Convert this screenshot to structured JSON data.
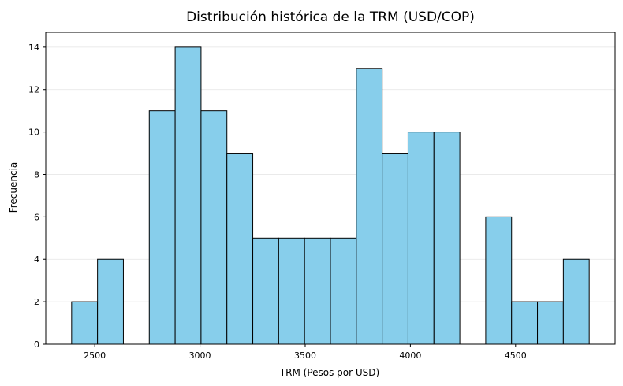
{
  "chart_data": {
    "type": "bar",
    "title": "Distribución histórica de la TRM (USD/COP)",
    "xlabel": "TRM (Pesos por USD)",
    "ylabel": "Frecuencia",
    "bins": [
      {
        "start": 2390,
        "end": 2513,
        "count": 2
      },
      {
        "start": 2513,
        "end": 2636,
        "count": 4
      },
      {
        "start": 2636,
        "end": 2759,
        "count": 0
      },
      {
        "start": 2759,
        "end": 2882,
        "count": 11
      },
      {
        "start": 2882,
        "end": 3005,
        "count": 14
      },
      {
        "start": 3005,
        "end": 3128,
        "count": 11
      },
      {
        "start": 3128,
        "end": 3251,
        "count": 9
      },
      {
        "start": 3251,
        "end": 3374,
        "count": 5
      },
      {
        "start": 3374,
        "end": 3497,
        "count": 5
      },
      {
        "start": 3497,
        "end": 3620,
        "count": 5
      },
      {
        "start": 3620,
        "end": 3743,
        "count": 5
      },
      {
        "start": 3743,
        "end": 3866,
        "count": 13
      },
      {
        "start": 3866,
        "end": 3989,
        "count": 9
      },
      {
        "start": 3989,
        "end": 4112,
        "count": 10
      },
      {
        "start": 4112,
        "end": 4235,
        "count": 10
      },
      {
        "start": 4235,
        "end": 4358,
        "count": 0
      },
      {
        "start": 4358,
        "end": 4481,
        "count": 6
      },
      {
        "start": 4481,
        "end": 4604,
        "count": 2
      },
      {
        "start": 4604,
        "end": 4727,
        "count": 2
      },
      {
        "start": 4727,
        "end": 4850,
        "count": 4
      }
    ],
    "x_ticks": [
      "2500",
      "3000",
      "3500",
      "4000",
      "4500"
    ],
    "y_ticks": [
      "0",
      "2",
      "4",
      "6",
      "8",
      "10",
      "12",
      "14"
    ],
    "xlim": [
      2267,
      4973
    ],
    "ylim": [
      0,
      14.7
    ],
    "grid": "y",
    "bar_color": "#87ceeb",
    "edge_color": "#000000"
  }
}
